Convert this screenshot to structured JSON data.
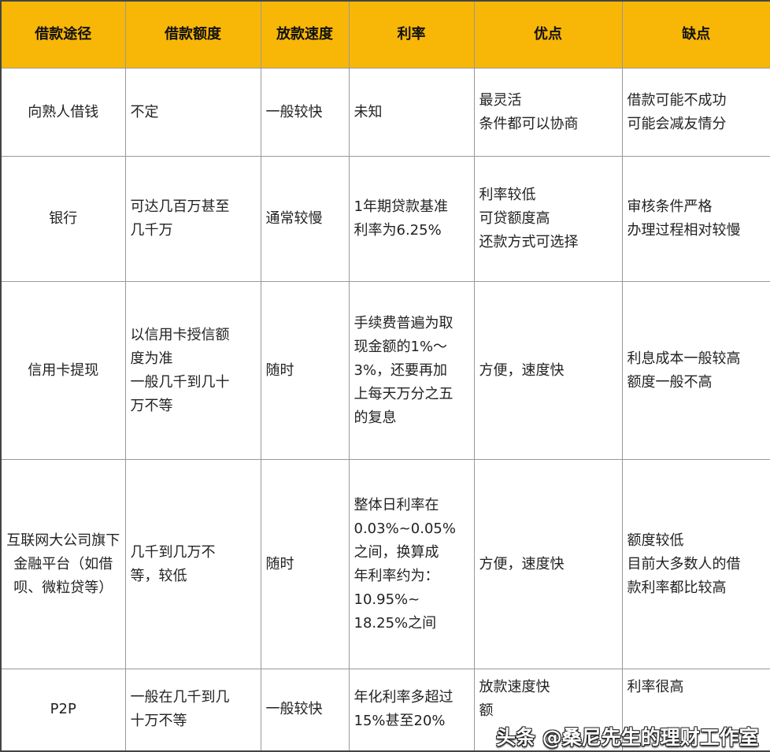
{
  "headers": [
    "借款途径",
    "借款额度",
    "放款速度",
    "利率",
    "优点",
    "缺点"
  ],
  "rows": [
    {
      "route": "向熟人借钱",
      "amount": [
        "不定"
      ],
      "speed": "一般较快",
      "rate": [
        "未知"
      ],
      "pros": [
        "最灵活",
        "条件都可以协商"
      ],
      "cons": [
        "借款可能不成功",
        "可能会减友情分"
      ]
    },
    {
      "route": "银行",
      "amount": [
        "可达几百万甚至",
        "几千万"
      ],
      "speed": "通常较慢",
      "rate": [
        "1年期贷款基准",
        "利率为6.25%"
      ],
      "pros": [
        "利率较低",
        "可贷额度高",
        "还款方式可选择"
      ],
      "cons": [
        "审核条件严格",
        "办理过程相对较慢"
      ]
    },
    {
      "route": "信用卡提现",
      "amount": [
        "以信用卡授信额",
        "度为准",
        "一般几千到几十",
        "万不等"
      ],
      "speed": "随时",
      "rate": [
        "手续费普遍为取",
        "现金额的1%～",
        "3%，还要再加",
        "上每天万分之五",
        "的复息"
      ],
      "pros": [
        "方便，速度快"
      ],
      "cons": [
        "利息成本一般较高",
        "额度一般不高"
      ]
    },
    {
      "route": "互联网大公司旗下金融平台（如借呗、微粒贷等）",
      "amount": [
        "几千到几万不",
        "等，较低"
      ],
      "speed": "随时",
      "rate": [
        "整体日利率在",
        "0.03%~0.05%",
        "之间，换算成",
        "年利率约为：",
        "10.95%~",
        "18.25%之间"
      ],
      "pros": [
        "方便，速度快"
      ],
      "cons": [
        "额度较低",
        "目前大多数人的借",
        "款利率都比较高"
      ]
    },
    {
      "route": "P2P",
      "amount": [
        "一般在几千到几",
        "十万不等"
      ],
      "speed": "一般较快",
      "rate": [
        "年化利率多超过",
        "15%甚至20%"
      ],
      "pros": [
        "放款速度快",
        "额"
      ],
      "cons": [
        "利率很高"
      ]
    }
  ],
  "watermark": "头条 @桑尼先生的理财工作室"
}
